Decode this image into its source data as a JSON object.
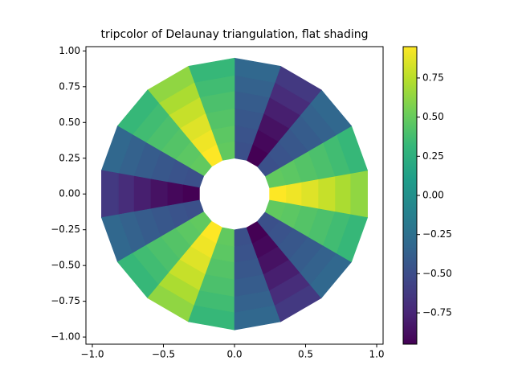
{
  "chart_data": {
    "type": "tripcolor",
    "title": "tripcolor of Delaunay triangulation, flat shading",
    "angles": [
      0,
      20,
      40,
      60,
      80,
      100,
      120,
      140,
      160,
      180,
      200,
      220,
      240,
      260,
      280,
      300,
      320,
      340
    ],
    "radii": [
      0.25,
      0.37,
      0.48,
      0.6,
      0.72,
      0.83,
      0.95
    ],
    "values": [
      [
        0.95,
        0.48,
        -0.48,
        -0.95,
        -0.48,
        0.48,
        0.95,
        0.48,
        -0.48,
        -0.95,
        -0.48,
        0.48,
        0.95,
        0.48,
        -0.48,
        -0.95,
        -0.48,
        0.48
      ],
      [
        0.91,
        0.46,
        -0.46,
        -0.91,
        -0.46,
        0.46,
        0.91,
        0.46,
        -0.46,
        -0.91,
        -0.46,
        0.46,
        0.91,
        0.46,
        -0.46,
        -0.91,
        -0.46,
        0.46
      ],
      [
        0.86,
        0.43,
        -0.43,
        -0.86,
        -0.43,
        0.43,
        0.86,
        0.43,
        -0.43,
        -0.86,
        -0.43,
        0.43,
        0.86,
        0.43,
        -0.43,
        -0.86,
        -0.43,
        0.43
      ],
      [
        0.79,
        0.4,
        -0.4,
        -0.79,
        -0.4,
        0.4,
        0.79,
        0.4,
        -0.4,
        -0.79,
        -0.4,
        0.4,
        0.79,
        0.4,
        -0.4,
        -0.79,
        -0.4,
        0.4
      ],
      [
        0.71,
        0.36,
        -0.36,
        -0.71,
        -0.36,
        0.36,
        0.71,
        0.36,
        -0.36,
        -0.71,
        -0.36,
        0.36,
        0.71,
        0.36,
        -0.36,
        -0.71,
        -0.36,
        0.36
      ],
      [
        0.63,
        0.32,
        -0.32,
        -0.63,
        -0.32,
        0.32,
        0.63,
        0.32,
        -0.32,
        -0.63,
        -0.32,
        0.32,
        0.63,
        0.32,
        -0.32,
        -0.63,
        -0.32,
        0.32
      ]
    ],
    "colormap": "viridis",
    "xlim": [
      -1.045,
      1.045
    ],
    "ylim": [
      -1.05,
      1.03
    ],
    "xticks": [
      {
        "value": -1.0,
        "label": "−1.0"
      },
      {
        "value": -0.5,
        "label": "−0.5"
      },
      {
        "value": 0.0,
        "label": "0.0"
      },
      {
        "value": 0.5,
        "label": "0.5"
      },
      {
        "value": 1.0,
        "label": "1.0"
      }
    ],
    "yticks": [
      {
        "value": -1.0,
        "label": "−1.00"
      },
      {
        "value": -0.75,
        "label": "−0.75"
      },
      {
        "value": -0.5,
        "label": "−0.50"
      },
      {
        "value": -0.25,
        "label": "−0.25"
      },
      {
        "value": 0.0,
        "label": "0.00"
      },
      {
        "value": 0.25,
        "label": "0.25"
      },
      {
        "value": 0.5,
        "label": "0.50"
      },
      {
        "value": 0.75,
        "label": "0.75"
      },
      {
        "value": 1.0,
        "label": "1.00"
      }
    ],
    "clim": [
      -0.95,
      0.95
    ],
    "cticks": [
      {
        "value": -0.75,
        "label": "−0.75"
      },
      {
        "value": -0.5,
        "label": "−0.50"
      },
      {
        "value": -0.25,
        "label": "−0.25"
      },
      {
        "value": 0.0,
        "label": "0.00"
      },
      {
        "value": 0.25,
        "label": "0.25"
      },
      {
        "value": 0.5,
        "label": "0.50"
      },
      {
        "value": 0.75,
        "label": "0.75"
      }
    ]
  }
}
